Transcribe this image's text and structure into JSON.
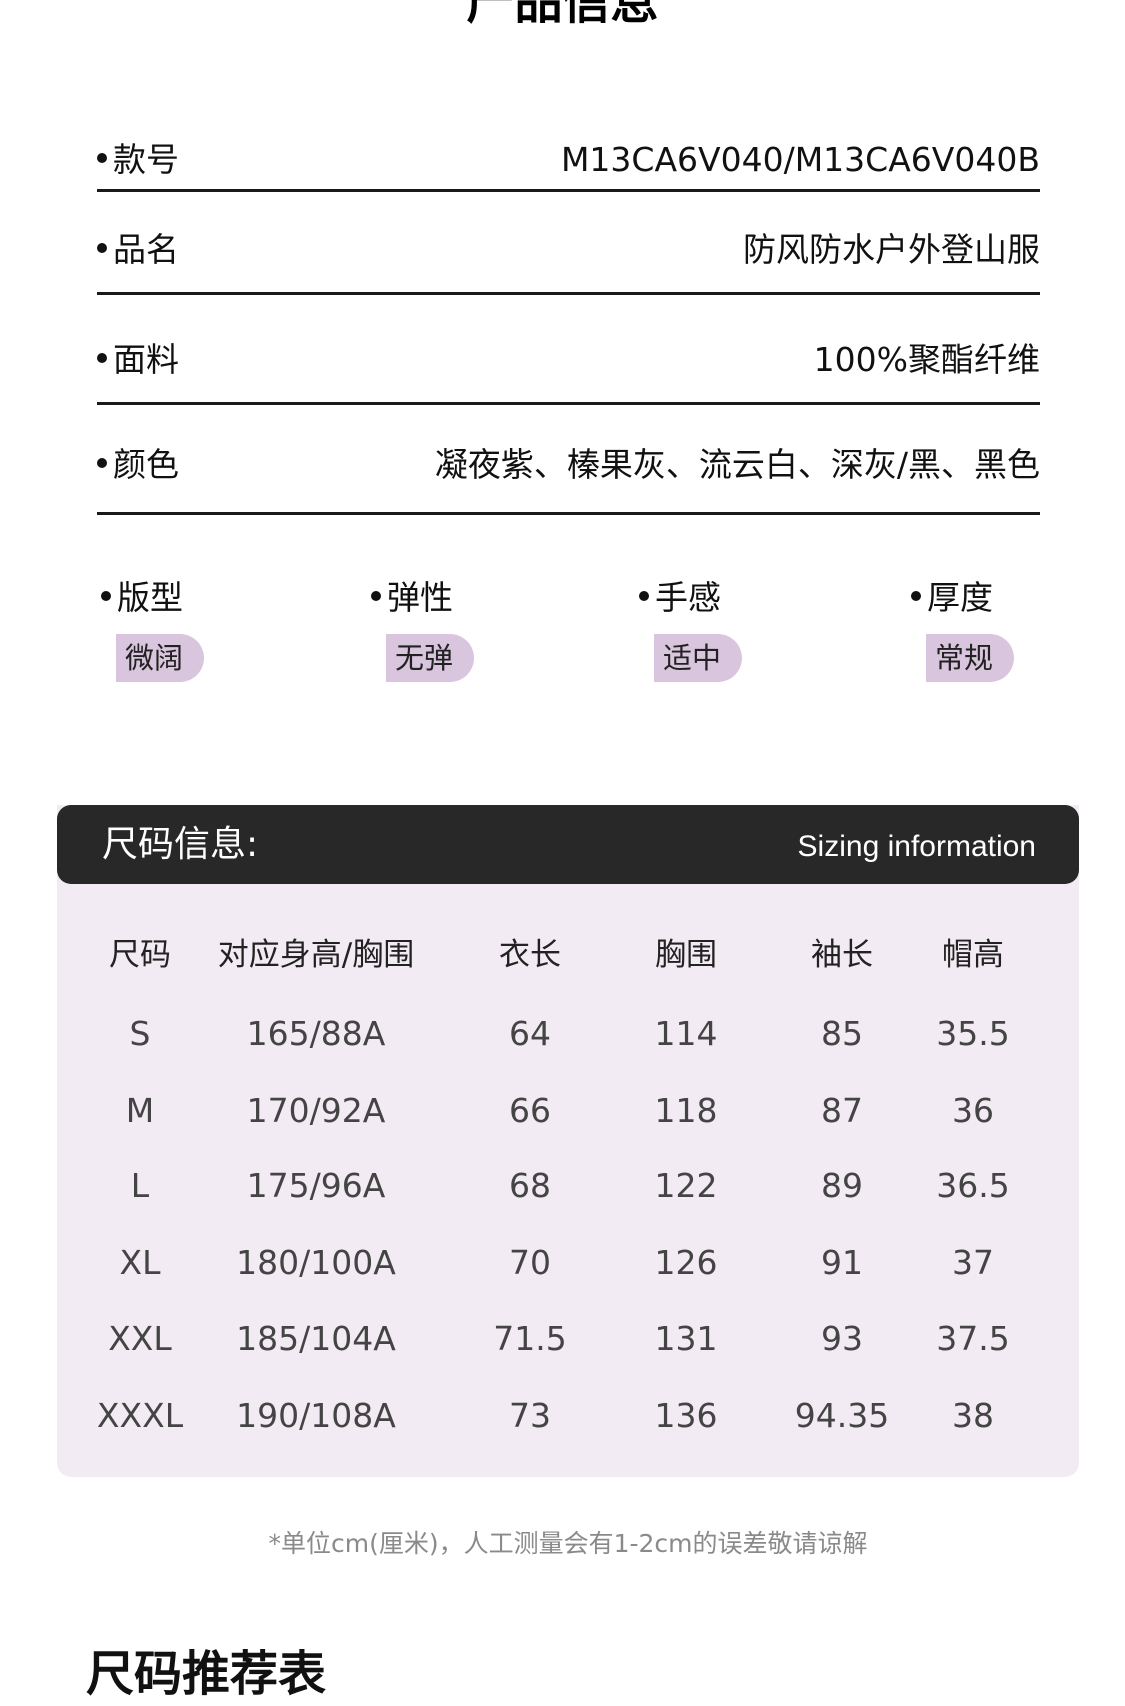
{
  "top_title": "产品信息",
  "info_rows": [
    {
      "label": "款号",
      "value": "M13CA6V040/M13CA6V040B"
    },
    {
      "label": "品名",
      "value": "防风防水户外登山服"
    },
    {
      "label": "面料",
      "value": "100%聚酯纤维"
    },
    {
      "label": "颜色",
      "value": "凝夜紫、榛果灰、流云白、深灰/黑、黑色"
    }
  ],
  "attributes": [
    {
      "label": "版型",
      "value": "微阔"
    },
    {
      "label": "弹性",
      "value": "无弹"
    },
    {
      "label": "手感",
      "value": "适中"
    },
    {
      "label": "厚度",
      "value": "常规"
    }
  ],
  "size_table": {
    "title_cn": "尺码信息:",
    "title_en": "Sizing information",
    "columns": [
      "尺码",
      "对应身高/胸围",
      "衣长",
      "胸围",
      "袖长",
      "帽高"
    ],
    "rows": [
      [
        "S",
        "165/88A",
        "64",
        "114",
        "85",
        "35.5"
      ],
      [
        "M",
        "170/92A",
        "66",
        "118",
        "87",
        "36"
      ],
      [
        "L",
        "175/96A",
        "68",
        "122",
        "89",
        "36.5"
      ],
      [
        "XL",
        "180/100A",
        "70",
        "126",
        "91",
        "37"
      ],
      [
        "XXL",
        "185/104A",
        "71.5",
        "131",
        "93",
        "37.5"
      ],
      [
        "XXXL",
        "190/108A",
        "73",
        "136",
        "94.35",
        "38"
      ]
    ]
  },
  "note": "*单位cm(厘米)，人工测量会有1-2cm的误差敬请谅解",
  "recommend_title": "尺码推荐表",
  "colors": {
    "tag": "#d9c5de",
    "table_bg": "#f3ebf3",
    "header_bg": "#282828"
  }
}
